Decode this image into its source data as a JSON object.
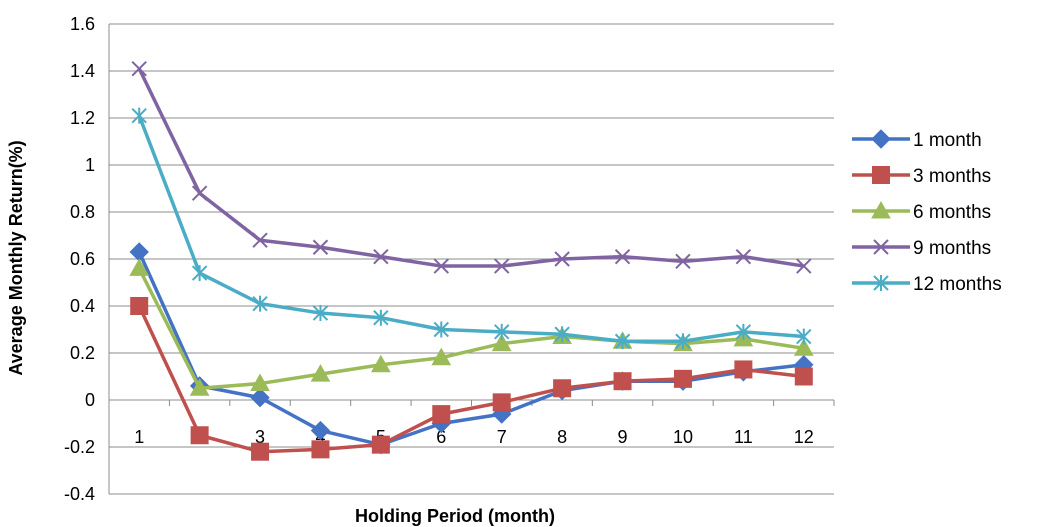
{
  "chart_data": {
    "type": "line",
    "title": "",
    "xlabel": "Holding Period (month)",
    "ylabel": "Average Monthly Return(%)",
    "categories": [
      "1",
      "2",
      "3",
      "4",
      "5",
      "6",
      "7",
      "8",
      "9",
      "10",
      "11",
      "12"
    ],
    "ylim": [
      -0.4,
      1.6
    ],
    "yticks": [
      "-0.4",
      "-0.2",
      "0",
      "0.2",
      "0.4",
      "0.6",
      "0.8",
      "1",
      "1.2",
      "1.4",
      "1.6"
    ],
    "grid": true,
    "legend_position": "right",
    "series": [
      {
        "name": "1 month",
        "color": "#4472C4",
        "marker": "diamond",
        "values": [
          0.63,
          0.06,
          0.01,
          -0.13,
          -0.19,
          -0.1,
          -0.06,
          0.04,
          0.08,
          0.08,
          0.12,
          0.15
        ]
      },
      {
        "name": "3 months",
        "color": "#C0504D",
        "marker": "square",
        "values": [
          0.4,
          -0.15,
          -0.22,
          -0.21,
          -0.19,
          -0.06,
          -0.01,
          0.05,
          0.08,
          0.09,
          0.13,
          0.1
        ]
      },
      {
        "name": "6 months",
        "color": "#9BBB59",
        "marker": "triangle",
        "values": [
          0.56,
          0.05,
          0.07,
          0.11,
          0.15,
          0.18,
          0.24,
          0.27,
          0.25,
          0.24,
          0.26,
          0.22
        ]
      },
      {
        "name": "9 months",
        "color": "#8064A2",
        "marker": "x",
        "values": [
          1.41,
          0.88,
          0.68,
          0.65,
          0.61,
          0.57,
          0.57,
          0.6,
          0.61,
          0.59,
          0.61,
          0.57
        ]
      },
      {
        "name": "12 months",
        "color": "#4BACC6",
        "marker": "star",
        "values": [
          1.21,
          0.54,
          0.41,
          0.37,
          0.35,
          0.3,
          0.29,
          0.28,
          0.25,
          0.25,
          0.29,
          0.27
        ]
      }
    ]
  }
}
